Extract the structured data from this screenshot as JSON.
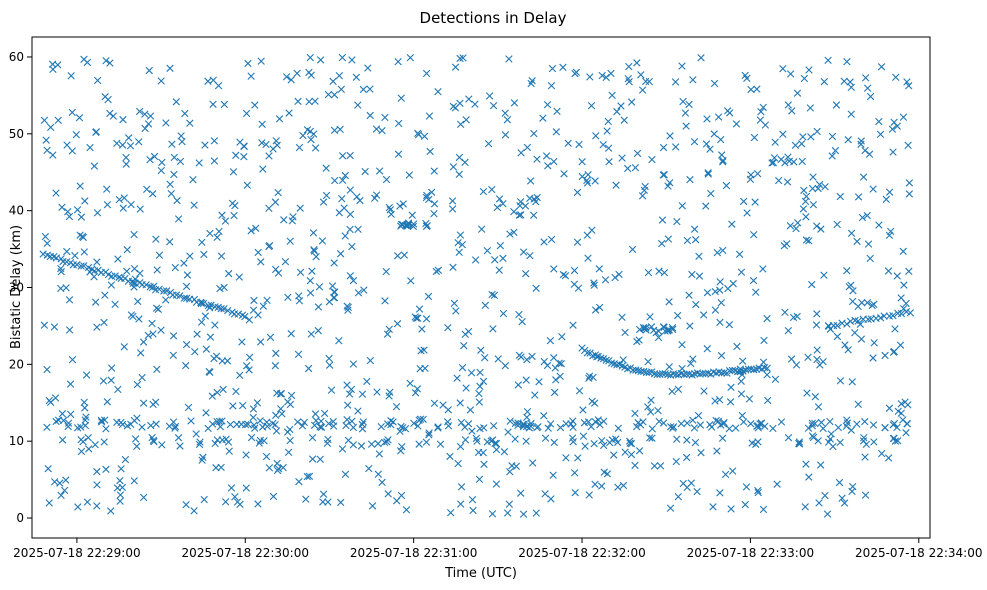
{
  "chart_data": {
    "type": "scatter",
    "title": "Detections in Delay",
    "xlabel": "Time (UTC)",
    "ylabel": "Bistatic Delay (km)",
    "marker": "x",
    "marker_color": "#1f77b4",
    "x_ticks": [
      "2025-07-18 22:29:00",
      "2025-07-18 22:30:00",
      "2025-07-18 22:31:00",
      "2025-07-18 22:32:00",
      "2025-07-18 22:33:00",
      "2025-07-18 22:34:00"
    ],
    "x_tick_seconds": [
      0,
      60,
      120,
      180,
      240,
      300
    ],
    "xlim_seconds": [
      -16,
      304
    ],
    "y_ticks": [
      0,
      10,
      20,
      30,
      40,
      50,
      60
    ],
    "ylim": [
      -2.6,
      62.6
    ],
    "x_range_seconds": [
      -12,
      297
    ],
    "series": [
      {
        "name": "track_upper_left",
        "kind": "line",
        "x_start": -12,
        "x_end": 60,
        "y_start": 34.3,
        "y_end": 26.3,
        "n": 60
      },
      {
        "name": "track_right_rise",
        "kind": "line",
        "x_start": 268,
        "x_end": 297,
        "y_start": 25.0,
        "y_end": 26.8,
        "n": 20
      },
      {
        "name": "track_v_curve",
        "kind": "parabola",
        "x_start": 180,
        "x_end": 246,
        "x_vertex": 212,
        "y_vertex": 18.7,
        "y_start": 22.0,
        "y_end": 19.6,
        "n": 70
      },
      {
        "name": "band_12km",
        "kind": "band",
        "x_start": -12,
        "x_end": 297,
        "y_center": 12.2,
        "y_spread": 0.6,
        "n": 150
      },
      {
        "name": "band_10km",
        "kind": "band",
        "x_start": 0,
        "x_end": 297,
        "y_center": 10.0,
        "y_spread": 0.5,
        "n": 70
      },
      {
        "name": "cluster_38km",
        "kind": "band",
        "x_start": 115,
        "x_end": 125,
        "y_center": 38.2,
        "y_spread": 0.3,
        "n": 14
      },
      {
        "name": "cluster_24km",
        "kind": "band",
        "x_start": 200,
        "x_end": 214,
        "y_center": 24.6,
        "y_spread": 0.3,
        "n": 14
      },
      {
        "name": "scattered_noise",
        "kind": "uniform",
        "x_start": -12,
        "x_end": 297,
        "y_min": 0.5,
        "y_max": 60.0,
        "n": 1150,
        "seed": 20250718
      }
    ]
  }
}
